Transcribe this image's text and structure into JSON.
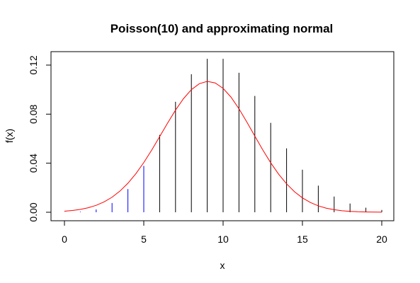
{
  "chart_data": {
    "type": "line",
    "title": "Poisson(10) and approximating normal",
    "xlabel": "x",
    "ylabel": "f(x)",
    "xlim": [
      0,
      20
    ],
    "ylim": [
      0,
      0.125
    ],
    "grid": false,
    "x_ticks": [
      0,
      5,
      10,
      15,
      20
    ],
    "x_tick_labels": [
      "0",
      "5",
      "10",
      "15",
      "20"
    ],
    "y_ticks": [
      0,
      0.04,
      0.08,
      0.12
    ],
    "y_tick_labels": [
      "0.00",
      "0.04",
      "0.08",
      "0.12"
    ],
    "series": [
      {
        "kind": "spikes",
        "x": [
          0,
          1,
          2,
          3,
          4,
          5,
          6,
          7,
          8,
          9,
          10,
          11,
          12,
          13,
          14,
          15,
          16,
          17,
          18,
          19,
          20
        ],
        "y": [
          4.54e-05,
          0.000454,
          0.00227,
          0.00757,
          0.0189,
          0.0378,
          0.0631,
          0.0901,
          0.1126,
          0.1251,
          0.1251,
          0.1137,
          0.0948,
          0.0729,
          0.0521,
          0.0347,
          0.0217,
          0.0128,
          0.0071,
          0.0037,
          0.0019
        ],
        "colors": [
          "#0000ff",
          "#0000ff",
          "#0000ff",
          "#0000ff",
          "#0000ff",
          "#0000ff",
          "#000000",
          "#000000",
          "#000000",
          "#000000",
          "#000000",
          "#000000",
          "#000000",
          "#000000",
          "#000000",
          "#000000",
          "#000000",
          "#000000",
          "#000000",
          "#000000",
          "#000000"
        ]
      },
      {
        "kind": "curve",
        "color": "#ff0000",
        "x": [
          0,
          0.5,
          1,
          1.5,
          2,
          2.5,
          3,
          3.5,
          4,
          4.5,
          5,
          5.5,
          6,
          6.5,
          7,
          7.5,
          8,
          8.5,
          9,
          9.5,
          10,
          10.5,
          11,
          11.5,
          12,
          12.5,
          13,
          13.5,
          14,
          14.5,
          15,
          15.5,
          16,
          16.5,
          17,
          17.5,
          18,
          18.5,
          19,
          19.5,
          20
        ],
        "y": [
          0.00085,
          0.00143,
          0.00233,
          0.00368,
          0.00566,
          0.00845,
          0.01226,
          0.01728,
          0.02364,
          0.03141,
          0.04051,
          0.05072,
          0.06163,
          0.07269,
          0.08326,
          0.0926,
          0.09998,
          0.10482,
          0.1067,
          0.10542,
          0.10103,
          0.09383,
          0.08437,
          0.0735,
          0.06207,
          0.05083,
          0.04036,
          0.03106,
          0.02317,
          0.01675,
          0.01174,
          0.00797,
          0.00524,
          0.00334,
          0.00207,
          0.00124,
          0.00072,
          0.0004,
          0.00022,
          0.00011,
          6e-05
        ]
      }
    ]
  }
}
